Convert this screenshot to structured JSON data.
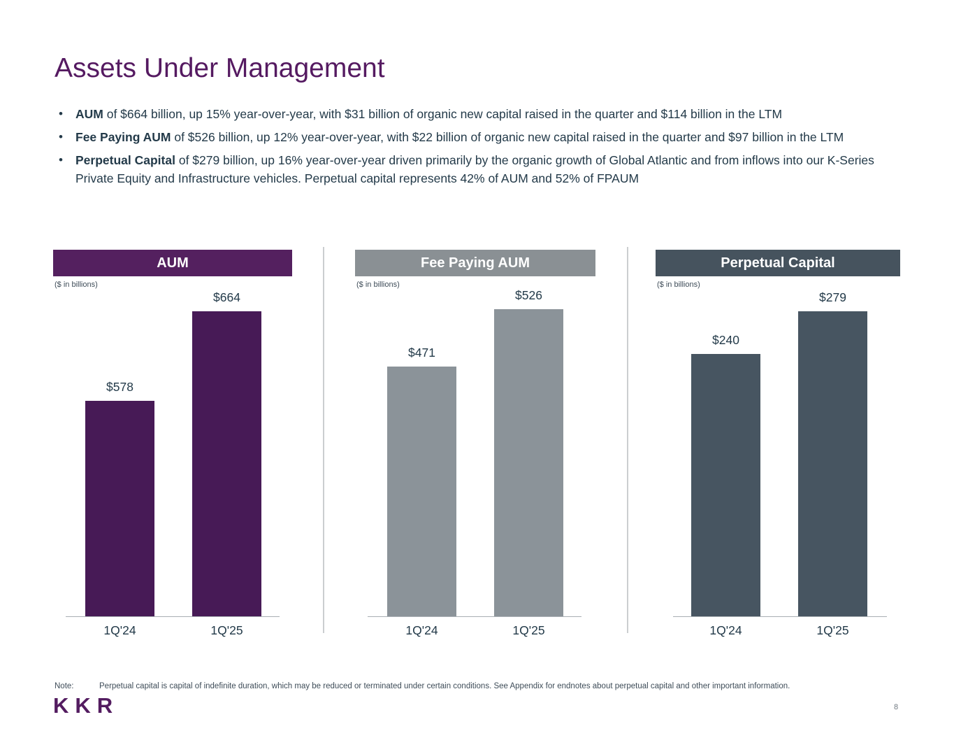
{
  "slide": {
    "title": "Assets Under Management",
    "note_label": "Note:",
    "note_text": "Perpetual capital is capital of indefinite duration, which may be reduced or terminated under certain conditions. See Appendix for endnotes about perpetual capital and other important information.",
    "logo_text": "KKR",
    "page_number": "8"
  },
  "bullets": [
    {
      "lead": "AUM",
      "text": " of $664 billion, up 15% year-over-year, with $31 billion of organic new capital raised in the quarter and $114 billion in the LTM"
    },
    {
      "lead": "Fee Paying AUM",
      "text": " of $526 billion, up 12% year-over-year, with $22 billion of organic new capital raised in the quarter and $97 billion in the LTM"
    },
    {
      "lead": "Perpetual Capital",
      "text": " of $279 billion, up 16% year-over-year driven primarily by the organic growth of Global Atlantic and from inflows into our K-Series Private Equity and Infrastructure vehicles. Perpetual capital represents 42% of AUM and 52% of FPAUM"
    }
  ],
  "chart_data": [
    {
      "type": "bar",
      "title": "AUM",
      "subtitle": "($ in billions)",
      "categories": [
        "1Q'24",
        "1Q'25"
      ],
      "values": [
        578,
        664
      ],
      "labels": [
        "$578",
        "$664"
      ],
      "ylim": [
        370,
        670
      ],
      "grid": false,
      "legend": "none",
      "colors": {
        "header_bg": "#54205F",
        "bar": "#471A56"
      }
    },
    {
      "type": "bar",
      "title": "Fee Paying AUM",
      "subtitle": "($ in billions)",
      "categories": [
        "1Q'24",
        "1Q'25"
      ],
      "values": [
        471,
        526
      ],
      "labels": [
        "$471",
        "$526"
      ],
      "ylim": [
        230,
        530
      ],
      "grid": false,
      "legend": "none",
      "colors": {
        "header_bg": "#8A9094",
        "bar": "#8B9399"
      }
    },
    {
      "type": "bar",
      "title": "Perpetual Capital",
      "subtitle": "($ in billions)",
      "categories": [
        "1Q'24",
        "1Q'25"
      ],
      "values": [
        240,
        279
      ],
      "labels": [
        "$240",
        "$279"
      ],
      "ylim": [
        0,
        285
      ],
      "grid": false,
      "legend": "none",
      "colors": {
        "header_bg": "#46535E",
        "bar": "#475561"
      }
    }
  ]
}
